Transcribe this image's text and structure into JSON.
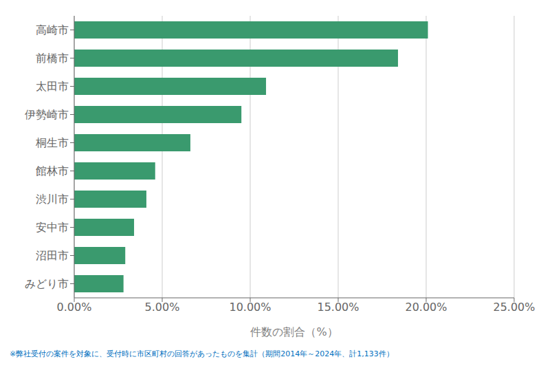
{
  "chart_data": {
    "type": "bar",
    "orientation": "horizontal",
    "categories": [
      "みどり市",
      "沼田市",
      "安中市",
      "渋川市",
      "館林市",
      "桐生市",
      "伊勢崎市",
      "太田市",
      "前橋市",
      "高崎市"
    ],
    "values": [
      2.8,
      2.9,
      3.4,
      4.1,
      4.6,
      6.6,
      9.5,
      10.9,
      18.4,
      20.1
    ],
    "color": "#3a9a6e",
    "xlabel": "件数の割合（%）",
    "xlim": [
      0,
      25
    ],
    "xticks": [
      {
        "value": 0,
        "label": "0.00%"
      },
      {
        "value": 5,
        "label": "5.00%"
      },
      {
        "value": 10,
        "label": "10.00%"
      },
      {
        "value": 15,
        "label": "15.00%"
      },
      {
        "value": 20,
        "label": "20.00%"
      },
      {
        "value": 25,
        "label": "25.00%"
      }
    ],
    "grid": true,
    "annotations": [
      {
        "text": "※弊社受付の案件を対象に、受付時に市区町村の回答があったものを集計（期間2014年～2024年、計1,133件）",
        "color": "#0070c0"
      }
    ]
  }
}
